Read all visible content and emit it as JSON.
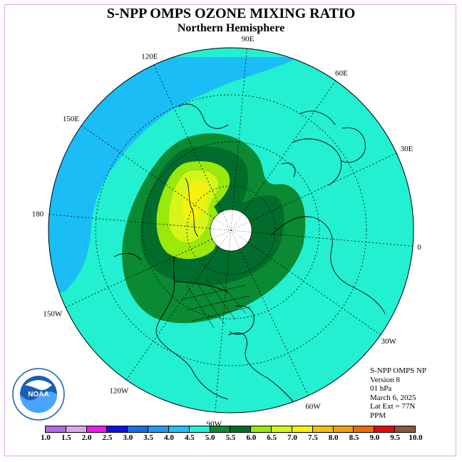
{
  "title": "S-NPP OMPS OZONE MIXING RATIO",
  "subtitle": "Northern Hemisphere",
  "longitude_labels": [
    "90E",
    "60E",
    "30E",
    "0",
    "30W",
    "60W",
    "90W",
    "120W",
    "150W",
    "180",
    "150E",
    "120E"
  ],
  "info": {
    "instrument": "S-NPP OMPS NP",
    "version": "Version 8",
    "level": "01 hPa",
    "date": "March 6, 2025",
    "lat_ext": "Lat Ext = 77N",
    "units": "PPM"
  },
  "logo": {
    "text": "NOAA"
  },
  "colors": {
    "ocean_bg": "#22f0d0",
    "blue_band": "#1bbdf6",
    "dark_green": "#006d2c",
    "med_green": "#0a8a32",
    "light_green": "#9be80b",
    "yellow_green": "#d6f51a",
    "yellow": "#f4f20a"
  },
  "colorbar": {
    "labels": [
      "1.0",
      "1.5",
      "2.0",
      "2.5",
      "3.0",
      "3.5",
      "4.0",
      "4.5",
      "5.0",
      "5.5",
      "6.0",
      "6.5",
      "7.0",
      "7.5",
      "8.0",
      "8.5",
      "9.0",
      "9.5",
      "10.0"
    ],
    "colors": [
      "#b36ae6",
      "#d9a8ec",
      "#f018f0",
      "#1010e8",
      "#1a6ee8",
      "#1e9af0",
      "#22c0f8",
      "#22f0d0",
      "#0a8a32",
      "#006d2c",
      "#9be80b",
      "#d6f51a",
      "#f4f20a",
      "#f0c010",
      "#f0a010",
      "#f06a10",
      "#e80a0a",
      "#8b5a3c"
    ]
  }
}
